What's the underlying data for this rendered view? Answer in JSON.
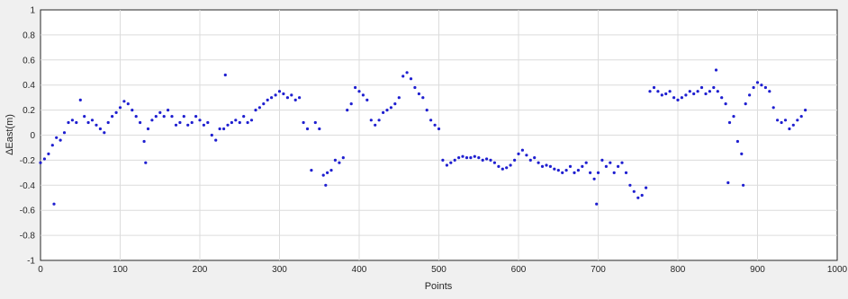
{
  "chart_data": {
    "type": "scatter",
    "xlabel": "Points",
    "ylabel": "ΔEast(m)",
    "xlim": [
      0,
      1000
    ],
    "ylim": [
      -1,
      1
    ],
    "xticks": [
      0,
      100,
      200,
      300,
      400,
      500,
      600,
      700,
      800,
      900,
      1000
    ],
    "yticks": [
      -1,
      -0.8,
      -0.6,
      -0.4,
      -0.2,
      0,
      0.2,
      0.4,
      0.6,
      0.8,
      1
    ],
    "xtick_labels": [
      "0",
      "100",
      "200",
      "300",
      "400",
      "500",
      "600",
      "700",
      "800",
      "900",
      "1000"
    ],
    "ytick_labels": [
      "-1",
      "-0.8",
      "-0.6",
      "-0.4",
      "-0.2",
      "0",
      "0.2",
      "0.4",
      "0.6",
      "0.8",
      "1"
    ],
    "grid": true,
    "marker_color": "#1f1fd0",
    "series": [
      {
        "points": [
          [
            0,
            -0.22
          ],
          [
            5,
            -0.19
          ],
          [
            10,
            -0.15
          ],
          [
            15,
            -0.08
          ],
          [
            17,
            -0.55
          ],
          [
            20,
            -0.02
          ],
          [
            25,
            -0.04
          ],
          [
            30,
            0.02
          ],
          [
            35,
            0.1
          ],
          [
            40,
            0.12
          ],
          [
            45,
            0.1
          ],
          [
            50,
            0.28
          ],
          [
            55,
            0.15
          ],
          [
            60,
            0.1
          ],
          [
            65,
            0.12
          ],
          [
            70,
            0.08
          ],
          [
            75,
            0.05
          ],
          [
            80,
            0.02
          ],
          [
            85,
            0.1
          ],
          [
            90,
            0.15
          ],
          [
            95,
            0.18
          ],
          [
            100,
            0.22
          ],
          [
            105,
            0.27
          ],
          [
            110,
            0.25
          ],
          [
            115,
            0.2
          ],
          [
            120,
            0.15
          ],
          [
            125,
            0.1
          ],
          [
            130,
            -0.05
          ],
          [
            132,
            -0.22
          ],
          [
            135,
            0.05
          ],
          [
            140,
            0.12
          ],
          [
            145,
            0.15
          ],
          [
            150,
            0.18
          ],
          [
            155,
            0.15
          ],
          [
            160,
            0.2
          ],
          [
            165,
            0.15
          ],
          [
            170,
            0.08
          ],
          [
            175,
            0.1
          ],
          [
            180,
            0.15
          ],
          [
            185,
            0.08
          ],
          [
            190,
            0.1
          ],
          [
            195,
            0.15
          ],
          [
            200,
            0.12
          ],
          [
            205,
            0.08
          ],
          [
            210,
            0.1
          ],
          [
            215,
            0.0
          ],
          [
            220,
            -0.04
          ],
          [
            225,
            0.05
          ],
          [
            230,
            0.05
          ],
          [
            232,
            0.48
          ],
          [
            235,
            0.08
          ],
          [
            240,
            0.1
          ],
          [
            245,
            0.12
          ],
          [
            250,
            0.1
          ],
          [
            255,
            0.15
          ],
          [
            260,
            0.1
          ],
          [
            265,
            0.12
          ],
          [
            270,
            0.2
          ],
          [
            275,
            0.22
          ],
          [
            280,
            0.25
          ],
          [
            285,
            0.28
          ],
          [
            290,
            0.3
          ],
          [
            295,
            0.32
          ],
          [
            300,
            0.35
          ],
          [
            305,
            0.33
          ],
          [
            310,
            0.3
          ],
          [
            315,
            0.32
          ],
          [
            320,
            0.28
          ],
          [
            325,
            0.3
          ],
          [
            330,
            0.1
          ],
          [
            335,
            0.05
          ],
          [
            340,
            -0.28
          ],
          [
            345,
            0.1
          ],
          [
            350,
            0.05
          ],
          [
            355,
            -0.32
          ],
          [
            358,
            -0.4
          ],
          [
            360,
            -0.3
          ],
          [
            365,
            -0.28
          ],
          [
            370,
            -0.2
          ],
          [
            375,
            -0.22
          ],
          [
            380,
            -0.18
          ],
          [
            385,
            0.2
          ],
          [
            390,
            0.25
          ],
          [
            395,
            0.38
          ],
          [
            400,
            0.35
          ],
          [
            405,
            0.32
          ],
          [
            410,
            0.28
          ],
          [
            415,
            0.12
          ],
          [
            420,
            0.08
          ],
          [
            425,
            0.12
          ],
          [
            430,
            0.18
          ],
          [
            435,
            0.2
          ],
          [
            440,
            0.22
          ],
          [
            445,
            0.25
          ],
          [
            450,
            0.3
          ],
          [
            455,
            0.47
          ],
          [
            460,
            0.5
          ],
          [
            465,
            0.45
          ],
          [
            470,
            0.38
          ],
          [
            475,
            0.33
          ],
          [
            480,
            0.3
          ],
          [
            485,
            0.2
          ],
          [
            490,
            0.12
          ],
          [
            495,
            0.08
          ],
          [
            500,
            0.05
          ],
          [
            505,
            -0.2
          ],
          [
            510,
            -0.24
          ],
          [
            515,
            -0.22
          ],
          [
            520,
            -0.2
          ],
          [
            525,
            -0.18
          ],
          [
            530,
            -0.17
          ],
          [
            535,
            -0.18
          ],
          [
            540,
            -0.18
          ],
          [
            545,
            -0.17
          ],
          [
            550,
            -0.18
          ],
          [
            555,
            -0.2
          ],
          [
            560,
            -0.19
          ],
          [
            565,
            -0.2
          ],
          [
            570,
            -0.22
          ],
          [
            575,
            -0.25
          ],
          [
            580,
            -0.27
          ],
          [
            585,
            -0.26
          ],
          [
            590,
            -0.24
          ],
          [
            595,
            -0.2
          ],
          [
            600,
            -0.15
          ],
          [
            605,
            -0.12
          ],
          [
            610,
            -0.16
          ],
          [
            615,
            -0.2
          ],
          [
            620,
            -0.18
          ],
          [
            625,
            -0.22
          ],
          [
            630,
            -0.25
          ],
          [
            635,
            -0.24
          ],
          [
            640,
            -0.25
          ],
          [
            645,
            -0.27
          ],
          [
            650,
            -0.28
          ],
          [
            655,
            -0.3
          ],
          [
            660,
            -0.28
          ],
          [
            665,
            -0.25
          ],
          [
            670,
            -0.3
          ],
          [
            675,
            -0.28
          ],
          [
            680,
            -0.25
          ],
          [
            685,
            -0.22
          ],
          [
            690,
            -0.3
          ],
          [
            695,
            -0.35
          ],
          [
            698,
            -0.55
          ],
          [
            700,
            -0.3
          ],
          [
            705,
            -0.2
          ],
          [
            710,
            -0.25
          ],
          [
            715,
            -0.22
          ],
          [
            720,
            -0.3
          ],
          [
            725,
            -0.25
          ],
          [
            730,
            -0.22
          ],
          [
            735,
            -0.3
          ],
          [
            740,
            -0.4
          ],
          [
            745,
            -0.45
          ],
          [
            750,
            -0.5
          ],
          [
            755,
            -0.48
          ],
          [
            760,
            -0.42
          ],
          [
            765,
            0.35
          ],
          [
            770,
            0.38
          ],
          [
            775,
            0.35
          ],
          [
            780,
            0.32
          ],
          [
            785,
            0.33
          ],
          [
            790,
            0.35
          ],
          [
            795,
            0.3
          ],
          [
            800,
            0.28
          ],
          [
            805,
            0.3
          ],
          [
            810,
            0.32
          ],
          [
            815,
            0.35
          ],
          [
            820,
            0.33
          ],
          [
            825,
            0.35
          ],
          [
            830,
            0.38
          ],
          [
            835,
            0.33
          ],
          [
            840,
            0.35
          ],
          [
            845,
            0.38
          ],
          [
            848,
            0.52
          ],
          [
            850,
            0.35
          ],
          [
            855,
            0.3
          ],
          [
            860,
            0.25
          ],
          [
            863,
            -0.38
          ],
          [
            865,
            0.1
          ],
          [
            870,
            0.15
          ],
          [
            875,
            -0.05
          ],
          [
            880,
            -0.15
          ],
          [
            882,
            -0.4
          ],
          [
            885,
            0.25
          ],
          [
            890,
            0.32
          ],
          [
            895,
            0.38
          ],
          [
            900,
            0.42
          ],
          [
            905,
            0.4
          ],
          [
            910,
            0.38
          ],
          [
            915,
            0.35
          ],
          [
            920,
            0.22
          ],
          [
            925,
            0.12
          ],
          [
            930,
            0.1
          ],
          [
            935,
            0.12
          ],
          [
            940,
            0.05
          ],
          [
            945,
            0.08
          ],
          [
            950,
            0.12
          ],
          [
            955,
            0.15
          ],
          [
            960,
            0.2
          ]
        ]
      }
    ]
  }
}
